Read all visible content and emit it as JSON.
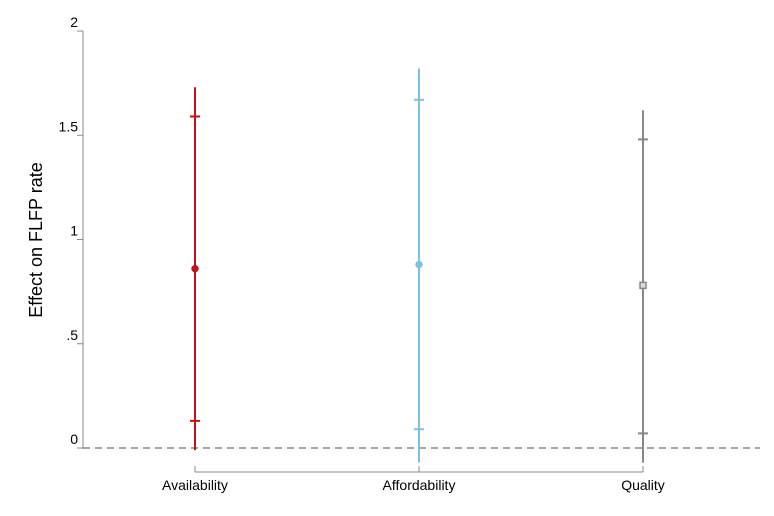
{
  "chart_data": {
    "type": "scatter",
    "title": "",
    "xlabel": "",
    "ylabel": "Effect on FLFP rate",
    "ylim": [
      0,
      2
    ],
    "y_ticks": [
      {
        "value": 0,
        "label": "0"
      },
      {
        "value": 0.5,
        "label": ".5"
      },
      {
        "value": 1,
        "label": "1"
      },
      {
        "value": 1.5,
        "label": "1.5"
      },
      {
        "value": 2,
        "label": "2"
      }
    ],
    "categories": [
      "Availability",
      "Affordability",
      "Quality"
    ],
    "reference_line": {
      "y": 0,
      "style": "dashed",
      "color": "#888888"
    },
    "grid": false,
    "legend": "none",
    "series": [
      {
        "category": "Availability",
        "estimate": 0.86,
        "ci_inner": [
          0.13,
          1.59
        ],
        "ci_outer": [
          -0.01,
          1.73
        ],
        "color": "#c1121c",
        "marker": "circle"
      },
      {
        "category": "Affordability",
        "estimate": 0.88,
        "ci_inner": [
          0.09,
          1.67
        ],
        "ci_outer": [
          -0.07,
          1.82
        ],
        "color": "#7ec0e0",
        "marker": "circle"
      },
      {
        "category": "Quality",
        "estimate": 0.78,
        "ci_inner": [
          0.07,
          1.48
        ],
        "ci_outer": [
          -0.07,
          1.62
        ],
        "color": "#888888",
        "marker": "square"
      }
    ]
  }
}
